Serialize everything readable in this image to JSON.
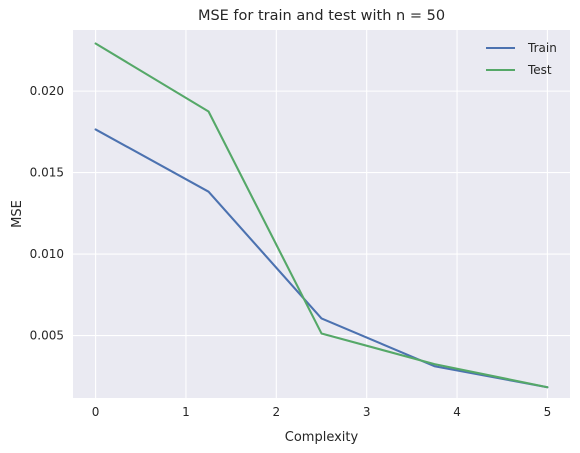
{
  "chart_data": {
    "type": "line",
    "title": "MSE for train and test with n = 50",
    "xlabel": "Complexity",
    "ylabel": "MSE",
    "x": [
      0,
      1.25,
      2.5,
      3.75,
      5
    ],
    "series": [
      {
        "name": "Train",
        "values": [
          0.01765,
          0.01383,
          0.00605,
          0.00312,
          0.00183
        ],
        "color": "#4c72b0"
      },
      {
        "name": "Test",
        "values": [
          0.02292,
          0.01875,
          0.00513,
          0.00325,
          0.00183
        ],
        "color": "#55a868"
      }
    ],
    "xlim": [
      -0.25,
      5.25
    ],
    "ylim": [
      0.00117,
      0.02375
    ],
    "xticks": [
      0,
      1,
      2,
      3,
      4,
      5
    ],
    "xtick_labels": [
      "0",
      "1",
      "2",
      "3",
      "4",
      "5"
    ],
    "yticks": [
      0.005,
      0.01,
      0.015,
      0.02
    ],
    "ytick_labels": [
      "0.005",
      "0.010",
      "0.015",
      "0.020"
    ],
    "grid": true,
    "legend_position": "top-right",
    "background_color": "#eaeaf2",
    "grid_color": "#ffffff"
  }
}
